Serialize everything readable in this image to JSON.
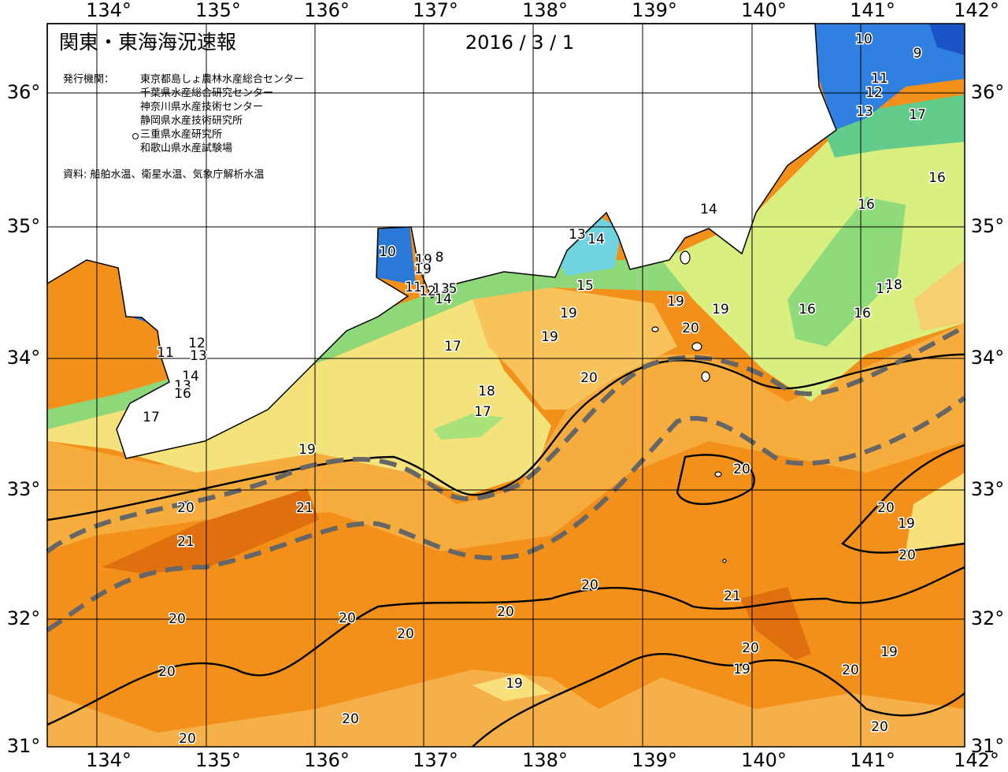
{
  "header": {
    "title": "関東・東海海況速報",
    "date": "2016 / 3 / 1",
    "issuer_label": "発行機関：",
    "issuers": [
      "東京都島しょ農林水産総合センター",
      "千葉県水産総合研究センター",
      "神奈川県水産技術センター",
      "静岡県水産技術研究所",
      "三重県水産研究所",
      "和歌山県水産試験場"
    ],
    "source": "資料: 船舶水温、衛星水温、気象庁解析水温"
  },
  "longitudes": [
    "134°",
    "135°",
    "136°",
    "137°",
    "138°",
    "139°",
    "140°",
    "141°",
    "142°"
  ],
  "latitudes": [
    "36°",
    "35°",
    "34°",
    "33°",
    "32°",
    "31°"
  ],
  "contour_labels": [
    10,
    9,
    11,
    12,
    13,
    17,
    16,
    16,
    14,
    13,
    14,
    10,
    19,
    8,
    19,
    11,
    12,
    13,
    5,
    14,
    15,
    19,
    19,
    16,
    16,
    17,
    18,
    19,
    20,
    19,
    17,
    12,
    11,
    13,
    14,
    13,
    16,
    20,
    18,
    17,
    17,
    19,
    20,
    20,
    21,
    20,
    19,
    21,
    20,
    20,
    21,
    20,
    20,
    20,
    20,
    20,
    19,
    19,
    20,
    20,
    19,
    20,
    20,
    20
  ]
}
